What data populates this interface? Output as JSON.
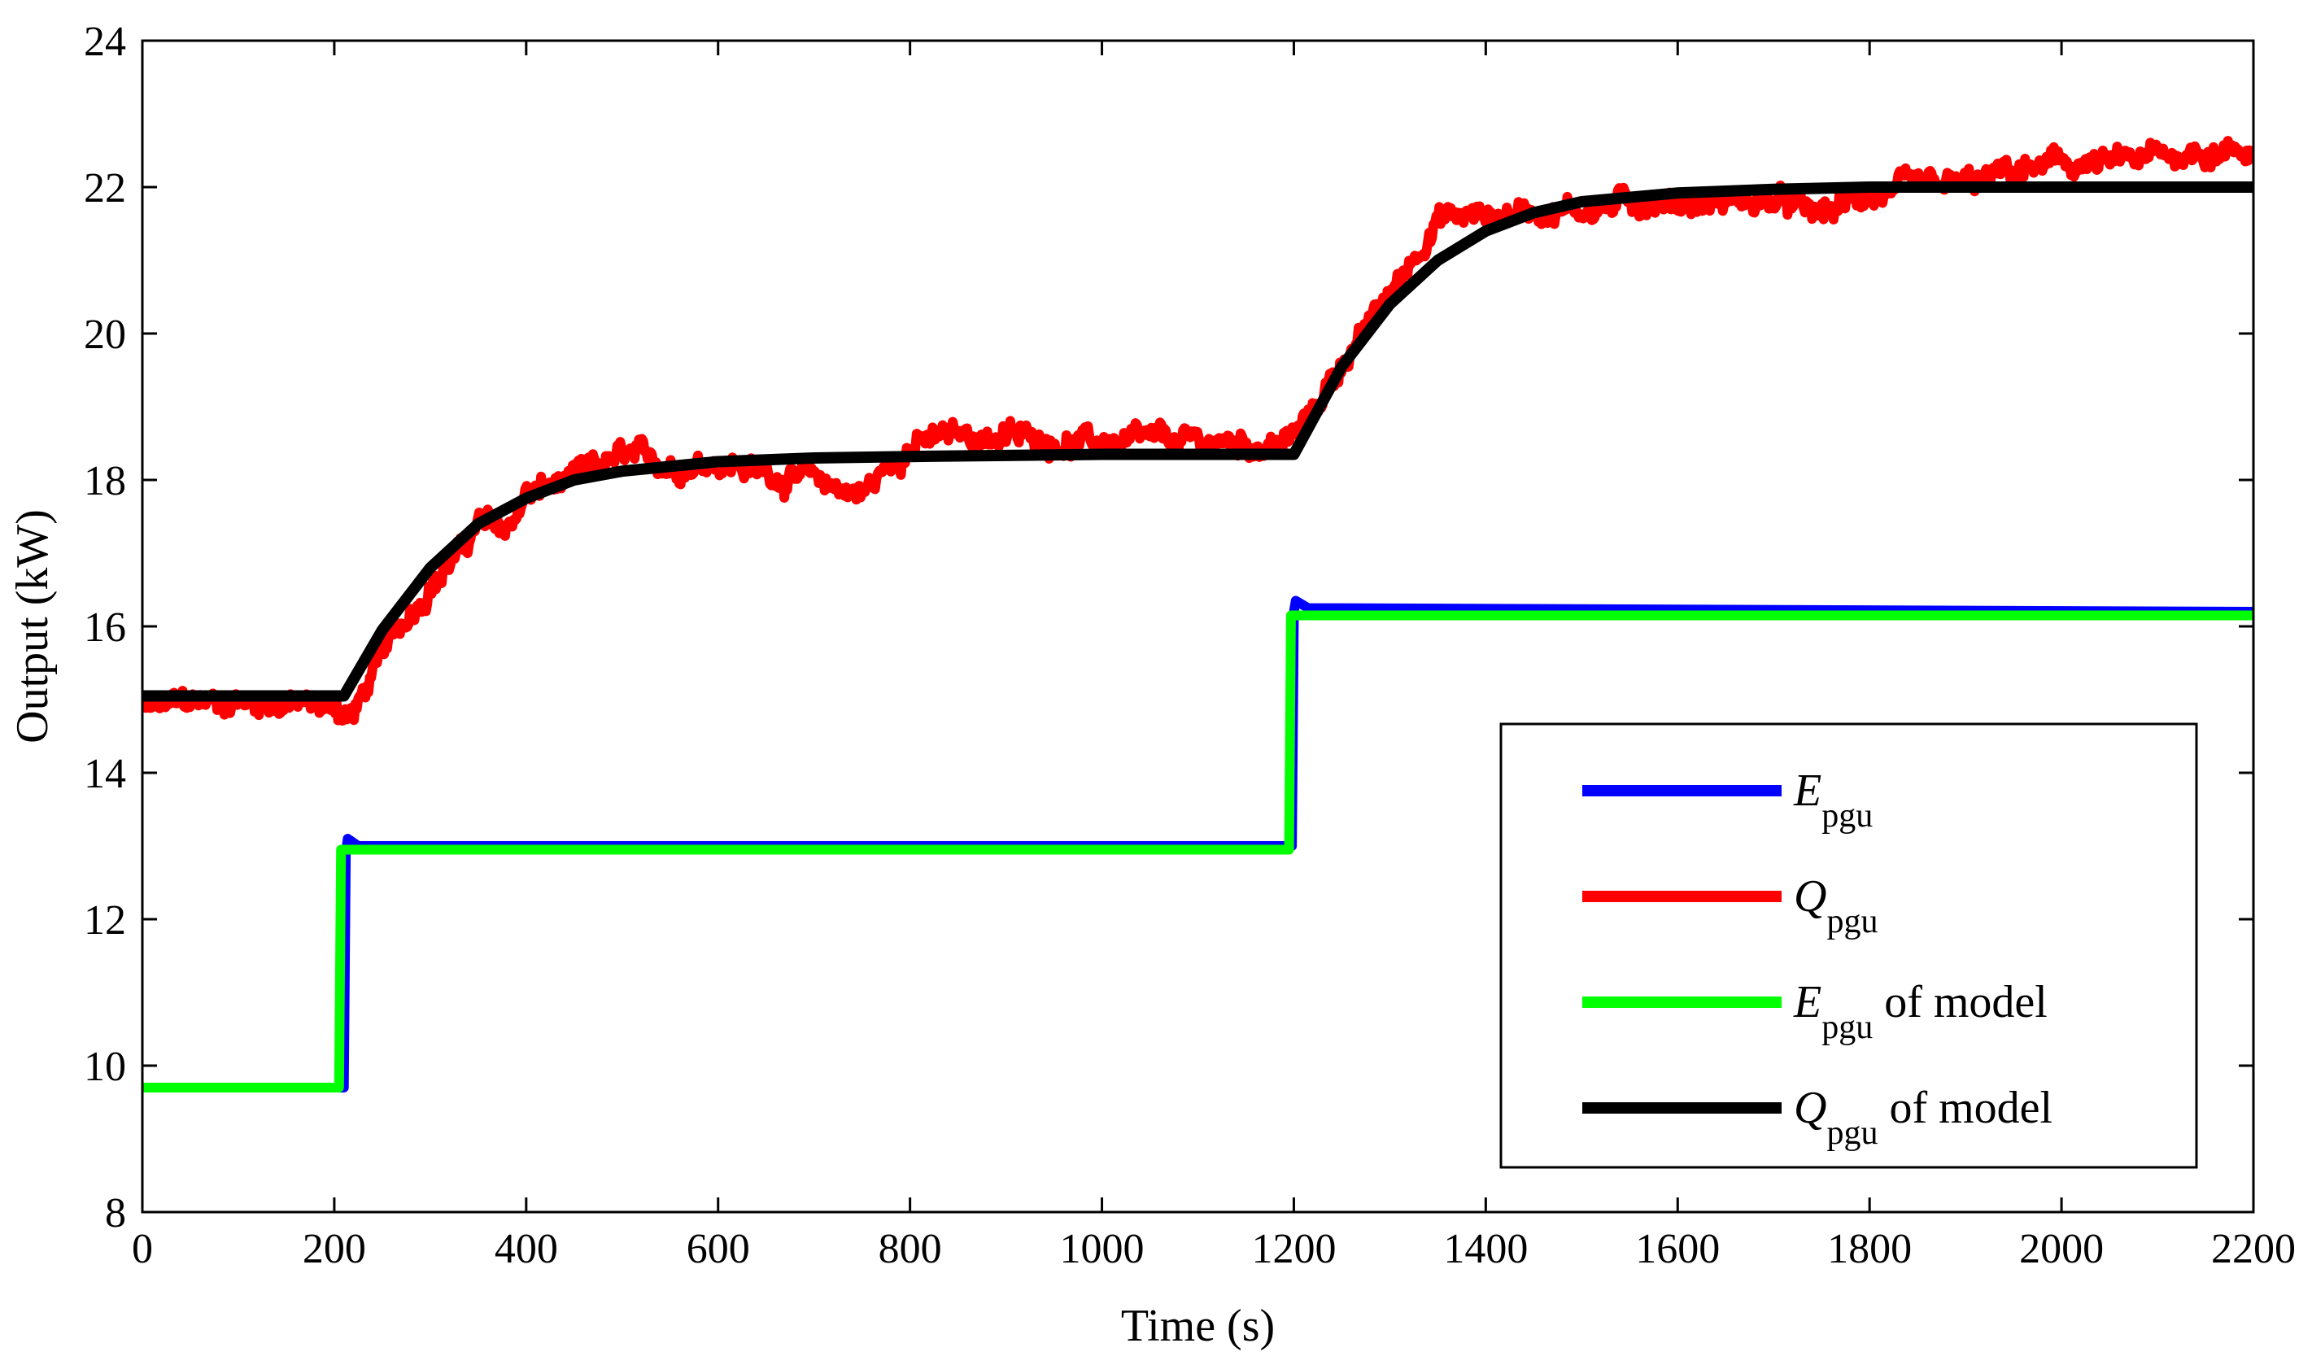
{
  "chart_data": {
    "type": "line",
    "xlabel": "Time (s)",
    "ylabel": "Output (kW)",
    "xlim": [
      0,
      2200
    ],
    "ylim": [
      8,
      24
    ],
    "xticks": [
      0,
      200,
      400,
      600,
      800,
      1000,
      1200,
      1400,
      1600,
      1800,
      2000,
      2200
    ],
    "yticks": [
      8,
      10,
      12,
      14,
      16,
      18,
      20,
      22,
      24
    ],
    "grid": false,
    "legend_position": "bottom-right",
    "series": [
      {
        "name": "E_pgu",
        "legend_symbol": "E",
        "legend_subscript": "pgu",
        "legend_suffix": "",
        "color": "#0000ff",
        "points": [
          [
            0,
            9.7
          ],
          [
            210,
            9.7
          ],
          [
            212,
            12.9
          ],
          [
            214,
            13.1
          ],
          [
            225,
            13.0
          ],
          [
            1198,
            13.0
          ],
          [
            1200,
            16.2
          ],
          [
            1202,
            16.35
          ],
          [
            1215,
            16.25
          ],
          [
            2200,
            16.2
          ]
        ]
      },
      {
        "name": "Q_pgu",
        "legend_symbol": "Q",
        "legend_subscript": "pgu",
        "legend_suffix": "",
        "color": "#ff0000",
        "noisy": true,
        "points": [
          [
            0,
            14.85
          ],
          [
            50,
            14.95
          ],
          [
            100,
            15.0
          ],
          [
            150,
            14.95
          ],
          [
            200,
            14.9
          ],
          [
            220,
            14.8
          ],
          [
            250,
            15.6
          ],
          [
            280,
            16.2
          ],
          [
            300,
            16.6
          ],
          [
            330,
            17.0
          ],
          [
            350,
            17.4
          ],
          [
            380,
            17.3
          ],
          [
            400,
            17.8
          ],
          [
            450,
            18.0
          ],
          [
            500,
            18.3
          ],
          [
            550,
            18.2
          ],
          [
            600,
            18.3
          ],
          [
            650,
            18.1
          ],
          [
            700,
            18.0
          ],
          [
            750,
            17.8
          ],
          [
            800,
            18.5
          ],
          [
            850,
            18.6
          ],
          [
            900,
            18.6
          ],
          [
            1000,
            18.5
          ],
          [
            1100,
            18.5
          ],
          [
            1190,
            18.5
          ],
          [
            1210,
            18.7
          ],
          [
            1250,
            19.6
          ],
          [
            1300,
            20.5
          ],
          [
            1350,
            21.6
          ],
          [
            1400,
            21.6
          ],
          [
            1450,
            21.7
          ],
          [
            1500,
            21.7
          ],
          [
            1550,
            21.8
          ],
          [
            1600,
            21.8
          ],
          [
            1700,
            21.8
          ],
          [
            1750,
            21.6
          ],
          [
            1800,
            21.9
          ],
          [
            1900,
            22.0
          ],
          [
            1950,
            22.2
          ],
          [
            2000,
            22.3
          ],
          [
            2050,
            22.3
          ],
          [
            2100,
            22.4
          ],
          [
            2150,
            22.5
          ],
          [
            2200,
            22.5
          ]
        ]
      },
      {
        "name": "E_pgu of model",
        "legend_symbol": "E",
        "legend_subscript": "pgu",
        "legend_suffix": " of model",
        "color": "#00ff00",
        "points": [
          [
            0,
            9.7
          ],
          [
            205,
            9.7
          ],
          [
            207,
            12.95
          ],
          [
            1195,
            12.95
          ],
          [
            1197,
            16.15
          ],
          [
            2200,
            16.15
          ]
        ]
      },
      {
        "name": "Q_pgu of model",
        "legend_symbol": "Q",
        "legend_subscript": "pgu",
        "legend_suffix": " of model",
        "color": "#000000",
        "points": [
          [
            0,
            15.05
          ],
          [
            210,
            15.05
          ],
          [
            250,
            15.95
          ],
          [
            300,
            16.8
          ],
          [
            350,
            17.4
          ],
          [
            400,
            17.75
          ],
          [
            450,
            18.0
          ],
          [
            500,
            18.12
          ],
          [
            600,
            18.25
          ],
          [
            700,
            18.3
          ],
          [
            800,
            18.32
          ],
          [
            1000,
            18.35
          ],
          [
            1200,
            18.35
          ],
          [
            1250,
            19.55
          ],
          [
            1300,
            20.4
          ],
          [
            1350,
            21.0
          ],
          [
            1400,
            21.4
          ],
          [
            1450,
            21.65
          ],
          [
            1500,
            21.8
          ],
          [
            1600,
            21.92
          ],
          [
            1700,
            21.97
          ],
          [
            1800,
            22.0
          ],
          [
            2200,
            22.0
          ]
        ]
      }
    ]
  }
}
